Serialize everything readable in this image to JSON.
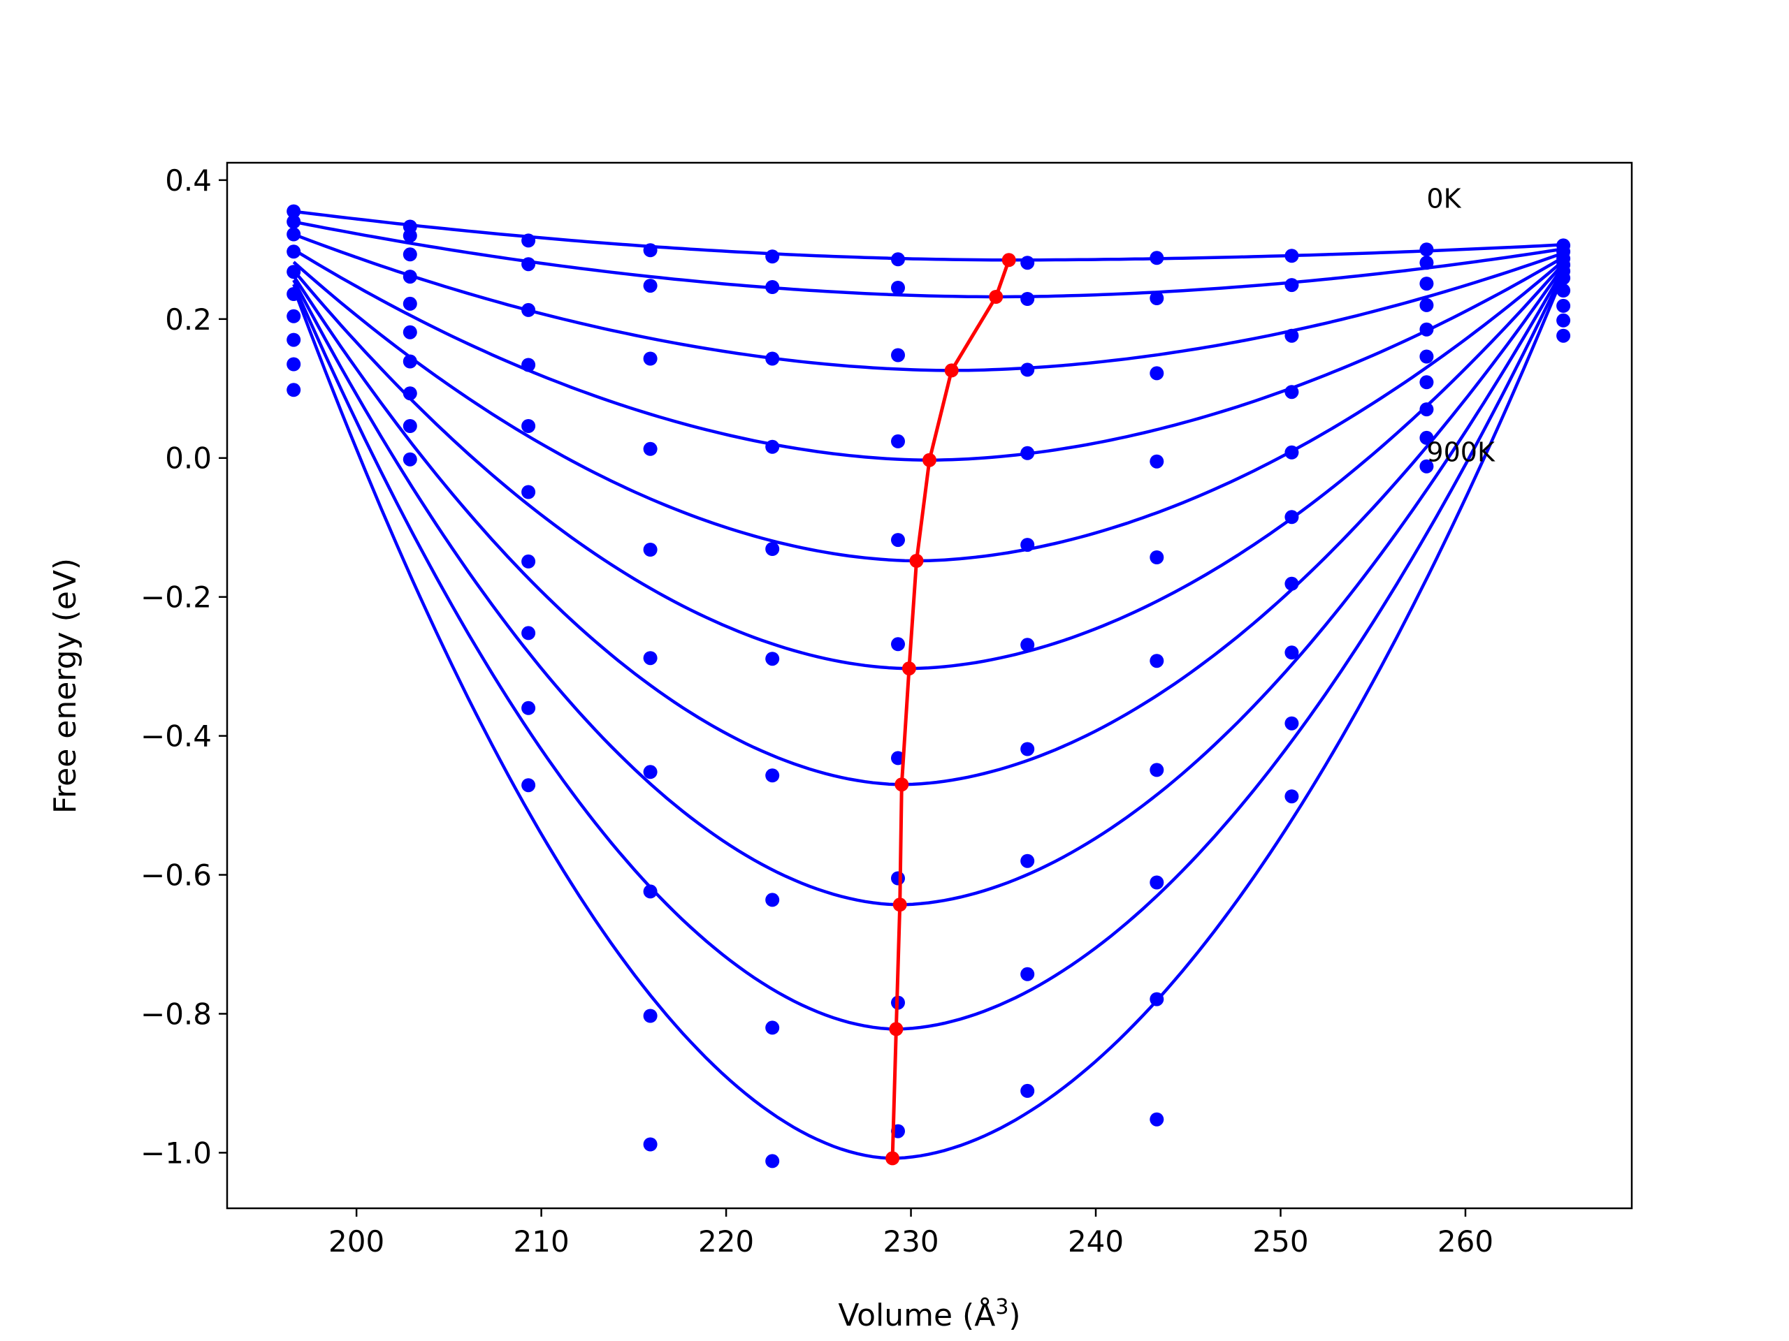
{
  "chart_data": {
    "type": "line",
    "xlabel": "Volume (Å",
    "xlabel_sup": "3",
    "xlabel_close": ")",
    "ylabel": "Free energy (eV)",
    "xlim": [
      193,
      269
    ],
    "ylim": [
      -1.08,
      0.425
    ],
    "xticks": [
      200,
      210,
      220,
      230,
      240,
      250,
      260
    ],
    "xtick_labels": [
      "200",
      "210",
      "220",
      "230",
      "240",
      "250",
      "260"
    ],
    "yticks": [
      0.4,
      0.2,
      0.0,
      -0.2,
      -0.4,
      -0.6,
      -0.8,
      -1.0
    ],
    "ytick_labels": [
      "0.4",
      "0.2",
      "0.0",
      "−0.2",
      "−0.4",
      "−0.6",
      "−0.8",
      "−1.0"
    ],
    "grid": false,
    "colors": {
      "fit": "#0000ff",
      "points": "#0000ff",
      "minima": "#ff0000"
    },
    "annotations": [
      {
        "text": "0K",
        "x": 257.9,
        "y": 0.36
      },
      {
        "text": "900K",
        "x": 257.9,
        "y": -0.005
      }
    ],
    "volumes": [
      196.6,
      202.9,
      209.3,
      215.9,
      222.5,
      229.3,
      236.3,
      243.3,
      250.6,
      257.9,
      265.3
    ],
    "series": [
      {
        "min_v": 235.3,
        "min_f": 0.285,
        "left_f": 0.355,
        "right_f": 0.307,
        "points": [
          0.355,
          0.333,
          0.313,
          0.299,
          0.29,
          0.286,
          0.281,
          0.288,
          0.291,
          0.3,
          0.306
        ]
      },
      {
        "min_v": 234.6,
        "min_f": 0.232,
        "left_f": 0.34,
        "right_f": 0.301,
        "points": [
          0.34,
          0.32,
          0.279,
          0.248,
          0.246,
          0.245,
          0.229,
          0.23,
          0.249,
          0.281,
          0.297
        ]
      },
      {
        "min_v": 232.2,
        "min_f": 0.126,
        "left_f": 0.322,
        "right_f": 0.295,
        "points": [
          0.322,
          0.293,
          0.213,
          0.143,
          0.143,
          0.148,
          0.127,
          0.122,
          0.176,
          0.251,
          0.287
        ]
      },
      {
        "min_v": 231.0,
        "min_f": -0.003,
        "left_f": 0.3,
        "right_f": 0.289,
        "points": [
          0.297,
          0.261,
          0.134,
          0.013,
          0.016,
          0.024,
          0.007,
          -0.005,
          0.095,
          0.22,
          0.278
        ]
      },
      {
        "min_v": 230.3,
        "min_f": -0.148,
        "left_f": 0.282,
        "right_f": 0.284,
        "points": [
          0.268,
          0.222,
          0.046,
          -0.132,
          -0.131,
          -0.118,
          -0.125,
          -0.143,
          0.008,
          0.185,
          0.269
        ]
      },
      {
        "min_v": 229.9,
        "min_f": -0.303,
        "left_f": 0.27,
        "right_f": 0.28,
        "points": [
          0.236,
          0.181,
          -0.049,
          -0.288,
          -0.289,
          -0.268,
          -0.269,
          -0.292,
          -0.085,
          0.146,
          0.259
        ]
      },
      {
        "min_v": 229.5,
        "min_f": -0.47,
        "left_f": 0.262,
        "right_f": 0.276,
        "points": [
          0.204,
          0.139,
          -0.149,
          -0.452,
          -0.457,
          -0.432,
          -0.419,
          -0.449,
          -0.181,
          0.109,
          0.241
        ]
      },
      {
        "min_v": 229.4,
        "min_f": -0.643,
        "left_f": 0.256,
        "right_f": 0.272,
        "points": [
          0.17,
          0.093,
          -0.252,
          -0.624,
          -0.636,
          -0.605,
          -0.58,
          -0.611,
          -0.28,
          0.07,
          0.219
        ]
      },
      {
        "min_v": 229.2,
        "min_f": -0.822,
        "left_f": 0.25,
        "right_f": 0.268,
        "points": [
          0.135,
          0.046,
          -0.36,
          -0.803,
          -0.82,
          -0.784,
          -0.743,
          -0.779,
          -0.382,
          0.029,
          0.198
        ]
      },
      {
        "min_v": 229.0,
        "min_f": -1.008,
        "left_f": 0.245,
        "right_f": 0.264,
        "points": [
          0.098,
          -0.002,
          -0.471,
          -0.988,
          -1.012,
          -0.969,
          -0.911,
          -0.952,
          -0.487,
          -0.012,
          0.176
        ]
      }
    ]
  }
}
